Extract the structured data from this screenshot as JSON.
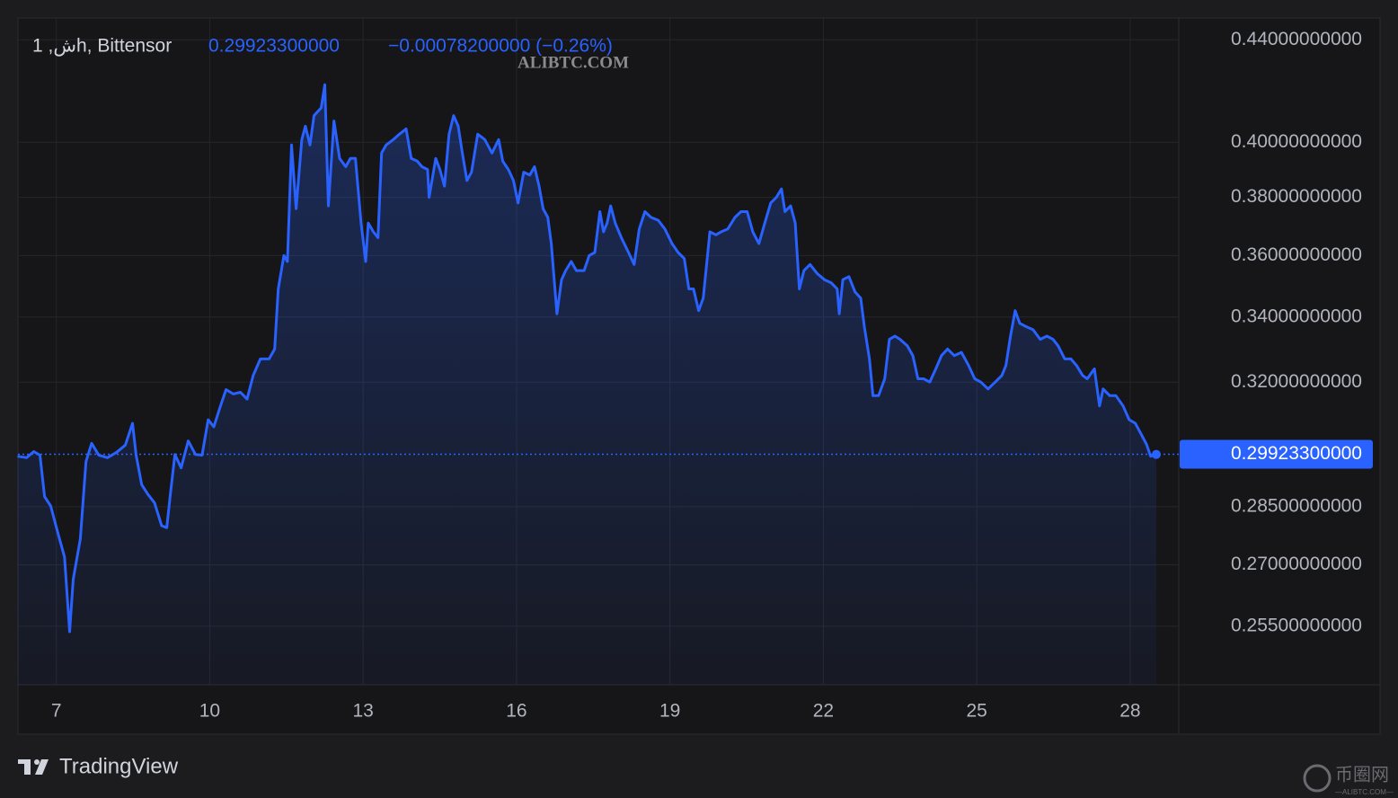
{
  "chart_data": {
    "type": "line",
    "symbol": "1 ,شh, Bittensor",
    "change": "−0.00078200000 (−0.26%)",
    "watermark": "ALIBTC.COM",
    "brand": "TradingView",
    "corner_brand": "币圈网",
    "corner_sub": "—ALIBTC.COM—",
    "log_scale": true,
    "grid": true,
    "series": [
      {
        "name": "Bittensor",
        "color": "#2962ff",
        "x": [
          6.24,
          6.42,
          6.56,
          6.68,
          6.77,
          6.89,
          7.04,
          7.16,
          7.26,
          7.33,
          7.47,
          7.58,
          7.69,
          7.83,
          8.0,
          8.18,
          8.35,
          8.49,
          8.56,
          8.67,
          8.79,
          8.92,
          9.06,
          9.16,
          9.23,
          9.32,
          9.44,
          9.58,
          9.72,
          9.85,
          9.97,
          10.08,
          10.2,
          10.32,
          10.46,
          10.6,
          10.73,
          10.85,
          10.99,
          11.16,
          11.27,
          11.34,
          11.45,
          11.52,
          11.6,
          11.69,
          11.8,
          11.87,
          11.96,
          12.04,
          12.18,
          12.25,
          12.32,
          12.43,
          12.54,
          12.66,
          12.75,
          12.85,
          12.96,
          13.05,
          13.1,
          13.2,
          13.29,
          13.36,
          13.45,
          13.59,
          13.71,
          13.84,
          13.94,
          14.06,
          14.15,
          14.26,
          14.29,
          14.42,
          14.5,
          14.59,
          14.68,
          14.77,
          14.86,
          14.94,
          15.03,
          15.12,
          15.24,
          15.38,
          15.52,
          15.65,
          15.73,
          15.84,
          15.94,
          16.03,
          16.14,
          16.26,
          16.35,
          16.44,
          16.52,
          16.61,
          16.68,
          16.79,
          16.88,
          16.96,
          17.07,
          17.17,
          17.32,
          17.42,
          17.53,
          17.63,
          17.7,
          17.77,
          17.84,
          17.93,
          18.05,
          18.19,
          18.3,
          18.4,
          18.51,
          18.63,
          18.77,
          18.9,
          19.04,
          19.16,
          19.28,
          19.37,
          19.46,
          19.56,
          19.65,
          19.78,
          19.9,
          20.0,
          20.13,
          20.27,
          20.39,
          20.51,
          20.62,
          20.74,
          20.87,
          20.97,
          21.08,
          21.18,
          21.25,
          21.36,
          21.45,
          21.53,
          21.62,
          21.74,
          21.88,
          22.02,
          22.15,
          22.27,
          22.31,
          22.38,
          22.5,
          22.62,
          22.73,
          22.8,
          22.9,
          22.97,
          23.08,
          23.2,
          23.29,
          23.4,
          23.5,
          23.64,
          23.75,
          23.85,
          23.96,
          24.08,
          24.2,
          24.31,
          24.43,
          24.56,
          24.7,
          24.84,
          24.96,
          25.08,
          25.22,
          25.36,
          25.49,
          25.57,
          25.66,
          25.75,
          25.84,
          25.96,
          26.1,
          26.24,
          26.37,
          26.49,
          26.59,
          26.72,
          26.84,
          26.95,
          27.07,
          27.16,
          27.3,
          27.4,
          27.47,
          27.6,
          27.72,
          27.86,
          27.98,
          28.1,
          28.21,
          28.32,
          28.4,
          28.51
        ],
        "values": [
          0.2987,
          0.2983,
          0.3,
          0.299,
          0.2877,
          0.2852,
          0.2776,
          0.272,
          0.2537,
          0.2664,
          0.2766,
          0.2972,
          0.3023,
          0.299,
          0.2983,
          0.2998,
          0.3018,
          0.308,
          0.299,
          0.2909,
          0.2883,
          0.286,
          0.28,
          0.2795,
          0.2883,
          0.2992,
          0.2955,
          0.303,
          0.2992,
          0.299,
          0.309,
          0.307,
          0.3125,
          0.3178,
          0.3165,
          0.317,
          0.315,
          0.322,
          0.327,
          0.327,
          0.33,
          0.349,
          0.36,
          0.358,
          0.399,
          0.376,
          0.401,
          0.406,
          0.399,
          0.41,
          0.413,
          0.422,
          0.377,
          0.408,
          0.394,
          0.391,
          0.394,
          0.394,
          0.371,
          0.358,
          0.371,
          0.368,
          0.366,
          0.396,
          0.399,
          0.401,
          0.403,
          0.405,
          0.394,
          0.393,
          0.391,
          0.39,
          0.38,
          0.394,
          0.39,
          0.384,
          0.403,
          0.41,
          0.406,
          0.396,
          0.386,
          0.389,
          0.403,
          0.401,
          0.396,
          0.401,
          0.393,
          0.39,
          0.386,
          0.378,
          0.389,
          0.388,
          0.391,
          0.384,
          0.376,
          0.373,
          0.364,
          0.341,
          0.352,
          0.355,
          0.358,
          0.355,
          0.355,
          0.36,
          0.361,
          0.375,
          0.368,
          0.371,
          0.377,
          0.371,
          0.366,
          0.361,
          0.357,
          0.369,
          0.375,
          0.373,
          0.372,
          0.369,
          0.364,
          0.361,
          0.359,
          0.349,
          0.349,
          0.342,
          0.346,
          0.368,
          0.367,
          0.368,
          0.369,
          0.373,
          0.375,
          0.375,
          0.368,
          0.364,
          0.372,
          0.378,
          0.38,
          0.383,
          0.375,
          0.377,
          0.371,
          0.349,
          0.355,
          0.357,
          0.354,
          0.352,
          0.351,
          0.349,
          0.341,
          0.352,
          0.353,
          0.348,
          0.346,
          0.337,
          0.327,
          0.316,
          0.316,
          0.321,
          0.333,
          0.334,
          0.333,
          0.331,
          0.328,
          0.321,
          0.321,
          0.32,
          0.324,
          0.328,
          0.33,
          0.328,
          0.329,
          0.325,
          0.321,
          0.32,
          0.318,
          0.32,
          0.322,
          0.325,
          0.334,
          0.342,
          0.338,
          0.337,
          0.336,
          0.333,
          0.334,
          0.333,
          0.331,
          0.327,
          0.327,
          0.325,
          0.322,
          0.321,
          0.324,
          0.313,
          0.318,
          0.316,
          0.316,
          0.313,
          0.309,
          0.308,
          0.305,
          0.302,
          0.2987,
          0.2992
        ]
      }
    ],
    "last": {
      "value": 0.299233,
      "label": "0.29923300000"
    },
    "xlim": [
      6.25,
      28.95
    ],
    "xticks": [
      7,
      10,
      13,
      16,
      19,
      22,
      25,
      28
    ],
    "ylim": [
      0.2415,
      0.449
    ],
    "yticks": [
      {
        "value": 0.44,
        "label": "0.44000000000"
      },
      {
        "value": 0.4,
        "label": "0.40000000000"
      },
      {
        "value": 0.38,
        "label": "0.38000000000"
      },
      {
        "value": 0.36,
        "label": "0.36000000000"
      },
      {
        "value": 0.34,
        "label": "0.34000000000"
      },
      {
        "value": 0.32,
        "label": "0.32000000000"
      },
      {
        "value": 0.285,
        "label": "0.28500000000"
      },
      {
        "value": 0.27,
        "label": "0.27000000000"
      },
      {
        "value": 0.255,
        "label": "0.25500000000"
      }
    ]
  }
}
